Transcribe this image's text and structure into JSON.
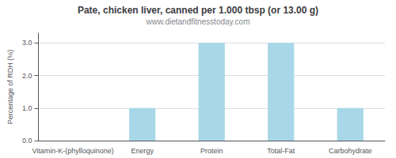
{
  "chart_data": {
    "type": "bar",
    "title": "Pate, chicken liver, canned per 1.000 tbsp (or 13.00 g)",
    "subtitle": "www.dietandfitnesstoday.com",
    "ylabel": "Percentage of RDH (%)",
    "categories": [
      "Vitamin-K-(phylloquinone)",
      "Energy",
      "Protein",
      "Total-Fat",
      "Carbohydrate"
    ],
    "values": [
      0.0,
      1.0,
      3.0,
      3.0,
      1.0
    ],
    "color": "#a8d8e8",
    "ylim": [
      0.0,
      3.3
    ],
    "yticks": [
      {
        "value": 0,
        "label": "0.0"
      },
      {
        "value": 1,
        "label": "1.0"
      },
      {
        "value": 2,
        "label": "2.0"
      },
      {
        "value": 3,
        "label": "3.0"
      }
    ],
    "grid": true
  }
}
